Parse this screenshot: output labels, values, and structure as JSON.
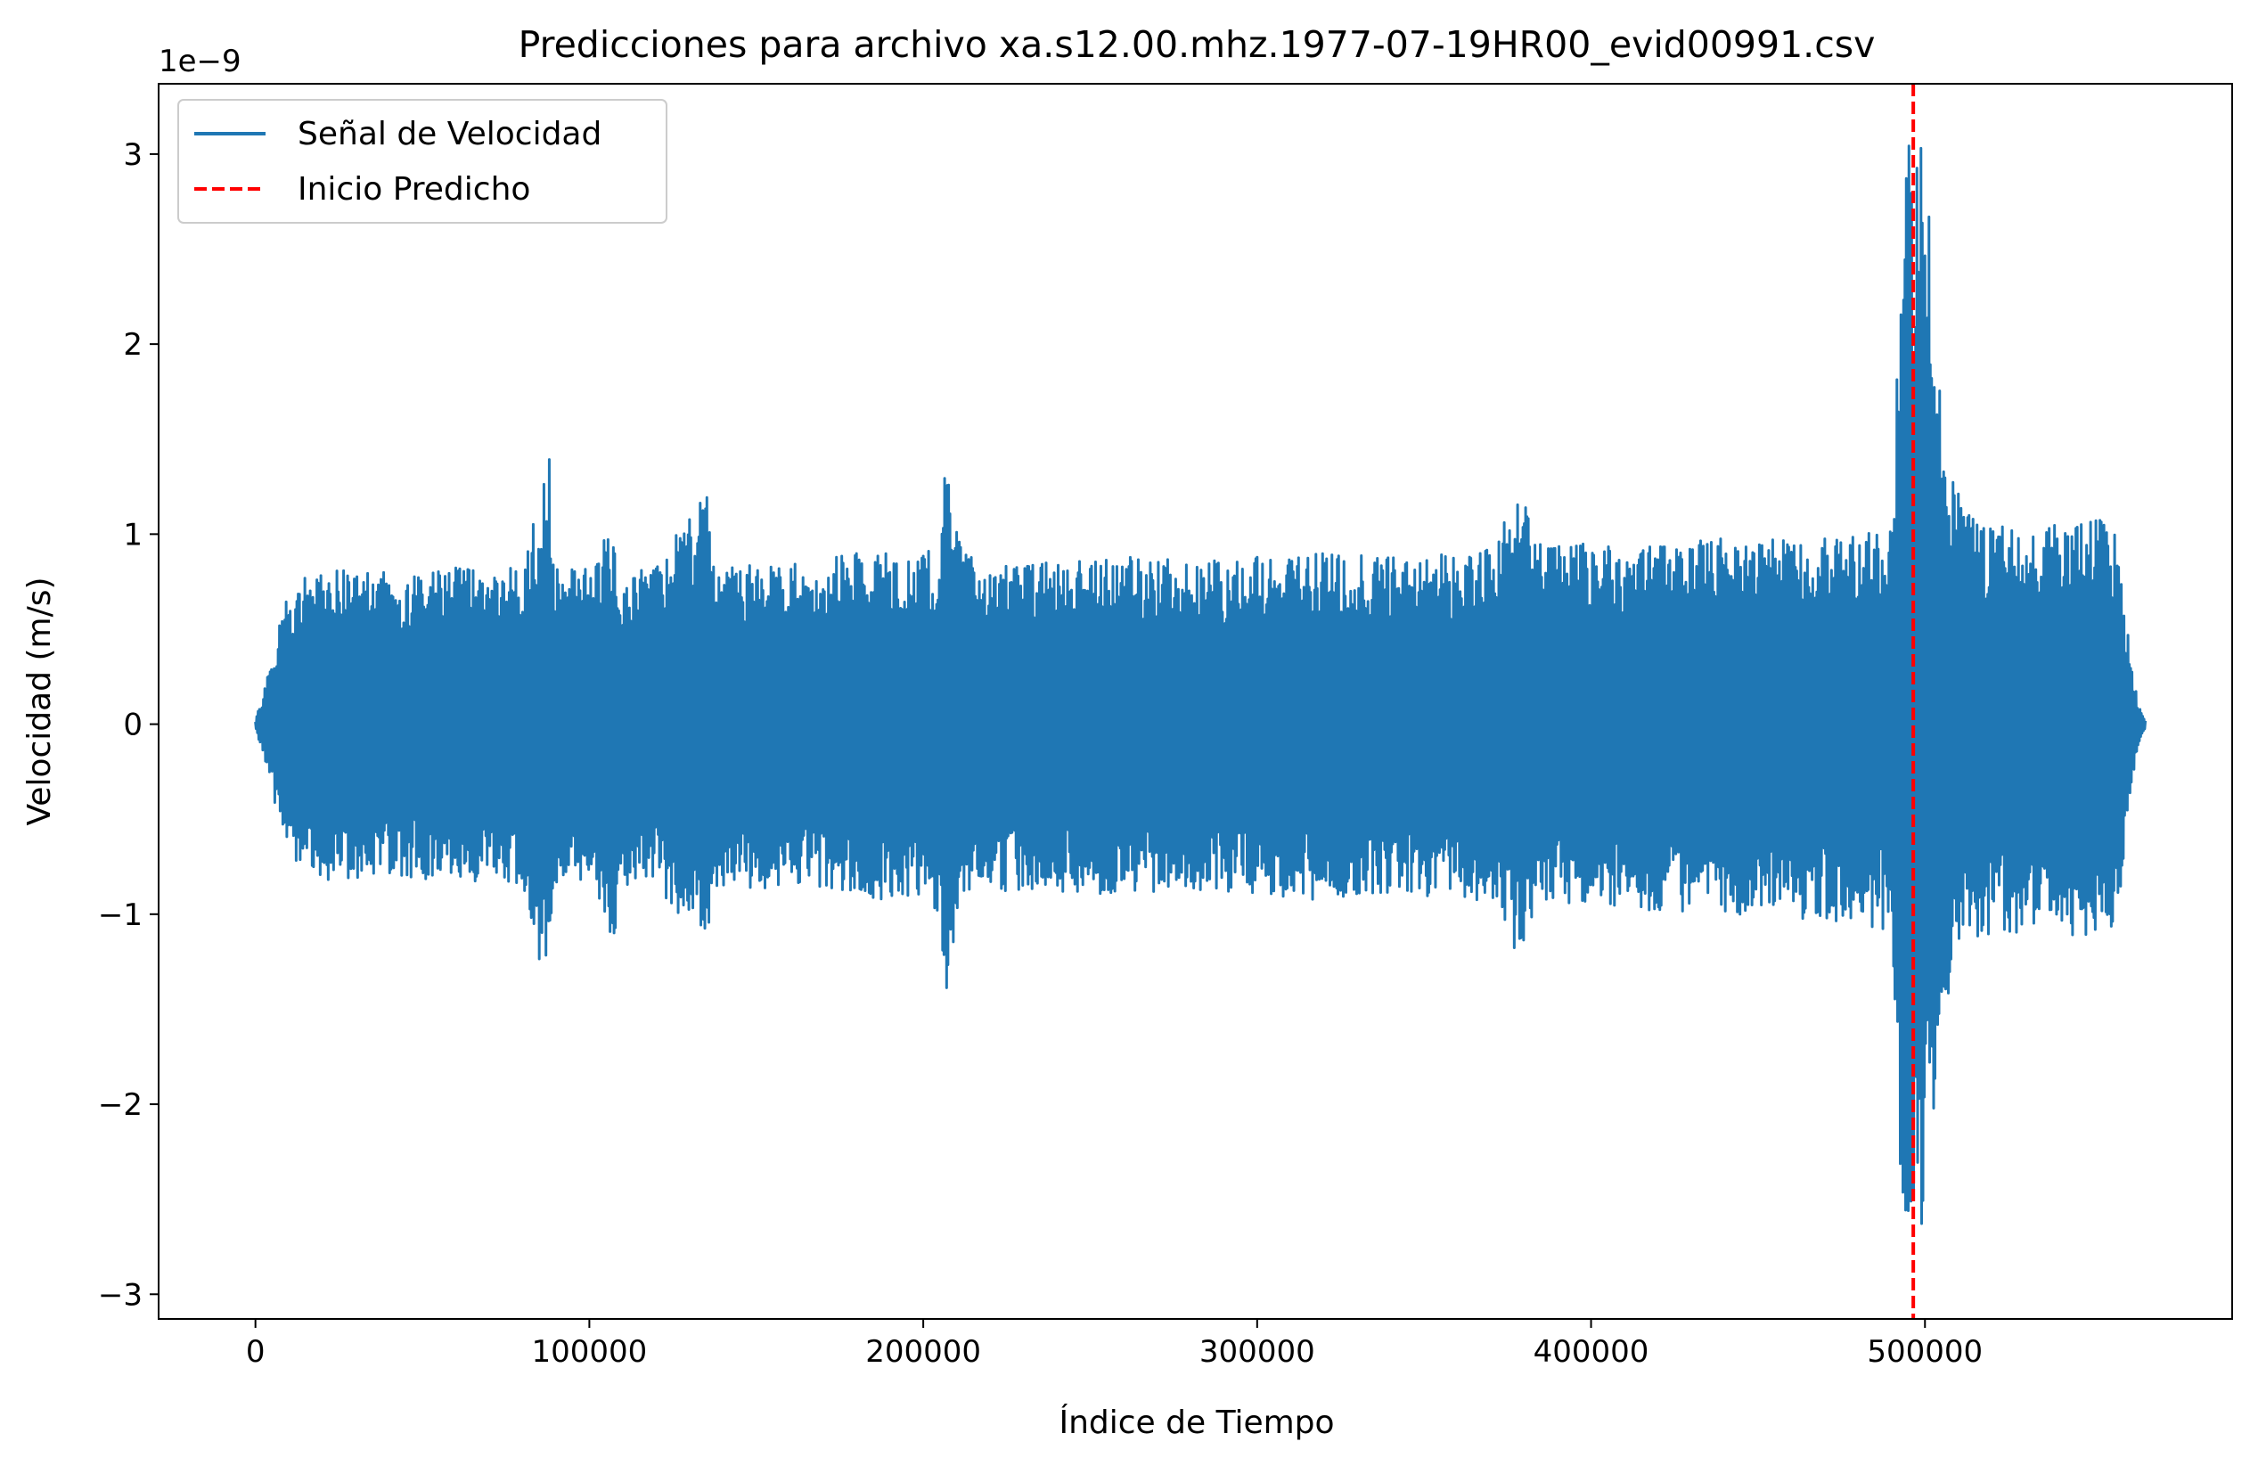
{
  "chart_data": {
    "type": "line",
    "title": "Predicciones para archivo xa.s12.00.mhz.1977-07-19HR00_evid00991.csv",
    "xlabel": "Índice de Tiempo",
    "ylabel": "Velocidad (m/s)",
    "y_offset_label": "1e−9",
    "xlim": [
      -29000,
      592000
    ],
    "ylim": [
      -3.13,
      3.37
    ],
    "xticks": [
      0,
      100000,
      200000,
      300000,
      400000,
      500000
    ],
    "xtick_labels": [
      "0",
      "100000",
      "200000",
      "300000",
      "400000",
      "500000"
    ],
    "yticks": [
      -3,
      -2,
      -1,
      0,
      1,
      2,
      3
    ],
    "ytick_labels": [
      "−3",
      "−2",
      "−1",
      "0",
      "1",
      "2",
      "3"
    ],
    "grid": false,
    "legend_position": "top-left",
    "series": [
      {
        "name": "Señal de Velocidad",
        "color": "#1f77b4",
        "style": "solid",
        "envelope": {
          "x": [
            0,
            3000,
            6000,
            9000,
            12000,
            20000,
            40000,
            60000,
            80000,
            88000,
            89500,
            91000,
            100000,
            108000,
            109500,
            120000,
            136000,
            137000,
            160000,
            180000,
            200000,
            205000,
            207000,
            209000,
            212000,
            220000,
            240000,
            260000,
            280000,
            300000,
            320000,
            340000,
            360000,
            370000,
            380000,
            381500,
            383000,
            400000,
            420000,
            440000,
            460000,
            480000,
            490000,
            493000,
            495500,
            497000,
            499000,
            501000,
            503000,
            505000,
            508000,
            512000,
            520000,
            540000,
            553000,
            556000,
            558000,
            560000,
            562000,
            564000,
            566000
          ],
          "upper": [
            0.02,
            0.2,
            0.45,
            0.65,
            0.75,
            0.82,
            0.8,
            0.83,
            0.82,
            1.4,
            0.9,
            0.82,
            0.83,
            1.08,
            0.83,
            0.84,
            1.26,
            0.84,
            0.86,
            0.9,
            0.9,
            0.95,
            1.46,
            1.1,
            0.9,
            0.86,
            0.85,
            0.88,
            0.86,
            0.88,
            0.9,
            0.88,
            0.9,
            0.95,
            1.31,
            1.15,
            0.95,
            0.95,
            0.95,
            0.98,
            0.98,
            1.0,
            1.05,
            2.63,
            3.1,
            2.9,
            3.07,
            2.8,
            1.8,
            1.75,
            1.3,
            1.15,
            1.05,
            1.05,
            1.1,
            1.05,
            0.95,
            0.6,
            0.3,
            0.1,
            0.02
          ],
          "lower": [
            -0.02,
            -0.2,
            -0.45,
            -0.65,
            -0.72,
            -0.82,
            -0.82,
            -0.83,
            -0.85,
            -1.5,
            -0.95,
            -0.85,
            -0.85,
            -1.26,
            -0.85,
            -0.86,
            -1.23,
            -0.86,
            -0.88,
            -0.92,
            -0.92,
            -1.0,
            -1.5,
            -1.15,
            -0.92,
            -0.88,
            -0.88,
            -0.9,
            -0.88,
            -0.9,
            -0.93,
            -0.9,
            -0.92,
            -0.98,
            -1.31,
            -1.2,
            -0.98,
            -0.98,
            -1.0,
            -1.0,
            -1.02,
            -1.05,
            -1.1,
            -2.5,
            -2.8,
            -2.65,
            -2.7,
            -2.5,
            -1.95,
            -1.8,
            -1.25,
            -1.15,
            -1.1,
            -1.1,
            -1.13,
            -1.1,
            -1.0,
            -0.6,
            -0.3,
            -0.1,
            -0.02
          ]
        }
      },
      {
        "name": "Inicio Predicho",
        "color": "#ff0000",
        "style": "dashed",
        "x_value": 496500
      }
    ]
  }
}
